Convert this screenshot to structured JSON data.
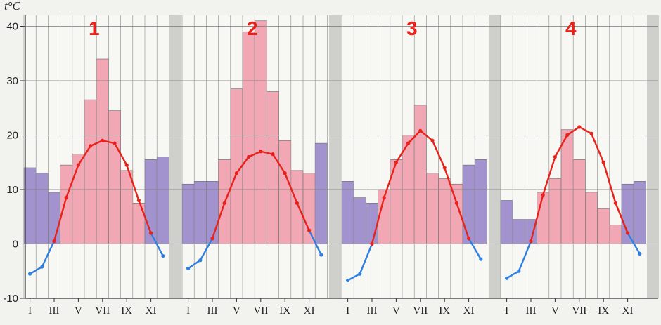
{
  "chart_data": {
    "type": "bar",
    "y_unit_label": "t°C",
    "ylim": [
      -10,
      42
    ],
    "y_ticks": [
      -10,
      0,
      10,
      20,
      30,
      40
    ],
    "grid": true,
    "colors": {
      "warm_bar": "#f2a7b4",
      "cold_bar": "#a293cf",
      "temperature_line": "#e8221b",
      "cold_line": "#2f7fe0",
      "panel_background": "#f7f7f3",
      "separator": "#cfcfcb",
      "grid": "#777777"
    },
    "panels": [
      {
        "number": "1",
        "month_ticks": [
          "I",
          "III",
          "V",
          "VII",
          "IX",
          "XI"
        ],
        "bars": [
          14,
          13,
          9.5,
          14.5,
          16.5,
          26.5,
          34,
          24.5,
          13.5,
          7.5,
          15.5,
          16
        ],
        "bar_types": [
          "cold",
          "cold",
          "cold",
          "warm",
          "warm",
          "warm",
          "warm",
          "warm",
          "warm",
          "warm",
          "cold",
          "cold"
        ],
        "line": [
          -5.5,
          -4.2,
          0.5,
          8.5,
          14.5,
          18,
          19,
          18.5,
          14.5,
          8,
          2,
          -2.2
        ]
      },
      {
        "number": "2",
        "month_ticks": [
          "I",
          "III",
          "V",
          "VII",
          "IX",
          "XI"
        ],
        "bars": [
          11,
          11.5,
          11.5,
          15.5,
          28.5,
          39,
          41,
          28,
          19,
          13.5,
          13,
          18.5
        ],
        "bar_types": [
          "cold",
          "cold",
          "cold",
          "warm",
          "warm",
          "warm",
          "warm",
          "warm",
          "warm",
          "warm",
          "warm",
          "cold"
        ],
        "line": [
          -4.5,
          -3,
          1,
          7.5,
          13,
          16,
          17,
          16.5,
          13,
          7.5,
          2.5,
          -2
        ]
      },
      {
        "number": "3",
        "month_ticks": [
          "I",
          "III",
          "V",
          "VII",
          "IX",
          "XI"
        ],
        "bars": [
          11.5,
          8.5,
          7.5,
          10,
          15.5,
          20,
          25.5,
          13,
          12,
          11,
          14.5,
          15.5
        ],
        "bar_types": [
          "cold",
          "cold",
          "cold",
          "warm",
          "warm",
          "warm",
          "warm",
          "warm",
          "warm",
          "warm",
          "cold",
          "cold"
        ],
        "line": [
          -6.7,
          -5.5,
          0,
          8.5,
          15,
          18.5,
          20.8,
          19,
          14,
          7.5,
          1,
          -2.8
        ]
      },
      {
        "number": "4",
        "month_ticks": [
          "I",
          "III",
          "V",
          "VII",
          "IX",
          "XI"
        ],
        "bars": [
          8,
          4.5,
          4.5,
          9.5,
          12,
          21,
          15.5,
          9.5,
          6.5,
          3.5,
          11,
          11.5
        ],
        "bar_types": [
          "cold",
          "cold",
          "cold",
          "warm",
          "warm",
          "warm",
          "warm",
          "warm",
          "warm",
          "warm",
          "cold",
          "cold"
        ],
        "line": [
          -6.3,
          -5,
          0.5,
          9,
          16,
          20,
          21.5,
          20.3,
          15,
          7.5,
          2,
          -1.8
        ]
      }
    ]
  }
}
